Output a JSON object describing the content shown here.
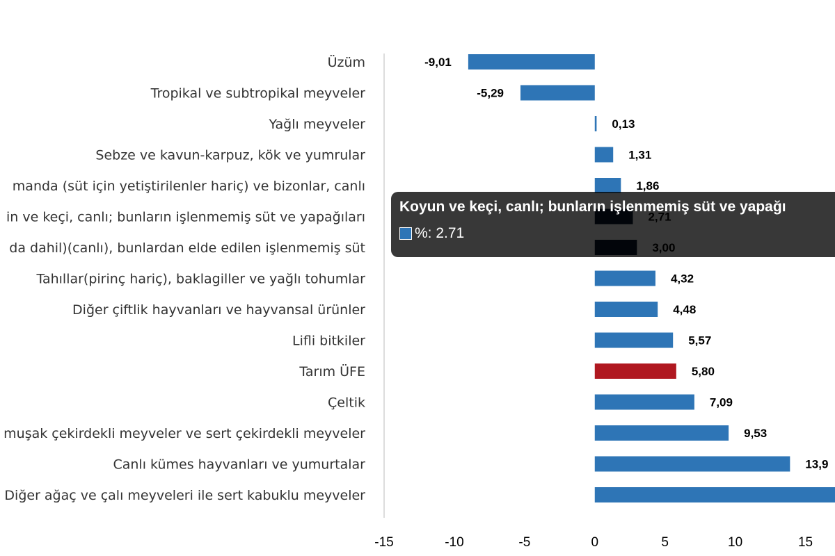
{
  "chart_data": {
    "type": "bar",
    "orientation": "horizontal",
    "categories": [
      "Üzüm",
      "Tropikal ve subtropikal meyveler",
      "Yağlı meyveler",
      "Sebze ve kavun-karpuz, kök ve yumrular",
      "manda (süt için yetiştirilenler hariç) ve bizonlar, canlı",
      "in ve keçi, canlı; bunların işlenmemiş süt ve yapağıları",
      "da dahil)(canlı), bunlardan elde edilen işlenmemiş süt",
      "Tahıllar(pirinç hariç), baklagiller ve yağlı tohumlar",
      "Diğer çiftlik hayvanları ve hayvansal ürünler",
      "Lifli bitkiler",
      "Tarım ÜFE",
      "Çeltik",
      "muşak çekirdekli meyveler ve sert çekirdekli meyveler",
      "Canlı kümes hayvanları ve yumurtalar",
      "Diğer ağaç ve çalı meyveleri ile sert kabuklu meyveler"
    ],
    "values": [
      -9.01,
      -5.29,
      0.13,
      1.31,
      1.86,
      2.71,
      3.0,
      4.32,
      4.48,
      5.57,
      5.8,
      7.09,
      9.53,
      13.9,
      17.5
    ],
    "value_labels": [
      "-9,01",
      "-5,29",
      "0,13",
      "1,31",
      "1,86",
      "2,71",
      "3,00",
      "4,32",
      "4,48",
      "5,57",
      "5,80",
      "7,09",
      "9,53",
      "13,9",
      ""
    ],
    "bar_colors": [
      "#2e75b6",
      "#2e75b6",
      "#2e75b6",
      "#2e75b6",
      "#2e75b6",
      "#0a1a2e",
      "#0a1a2e",
      "#2e75b6",
      "#2e75b6",
      "#2e75b6",
      "#b01820",
      "#2e75b6",
      "#2e75b6",
      "#2e75b6",
      "#2e75b6"
    ],
    "xlim": [
      -15,
      17.5
    ],
    "xticks": [
      -15,
      -10,
      -5,
      0,
      5,
      10,
      15
    ],
    "xtick_labels": [
      "-15",
      "-10",
      "-5",
      "0",
      "5",
      "10",
      "15"
    ],
    "grid": false,
    "legend": "none"
  },
  "tooltip": {
    "title": "Koyun ve keçi, canlı; bunların işlenmemiş süt ve yapağı",
    "value_text": "%: 2.71",
    "swatch_color": "#2e75b6"
  }
}
